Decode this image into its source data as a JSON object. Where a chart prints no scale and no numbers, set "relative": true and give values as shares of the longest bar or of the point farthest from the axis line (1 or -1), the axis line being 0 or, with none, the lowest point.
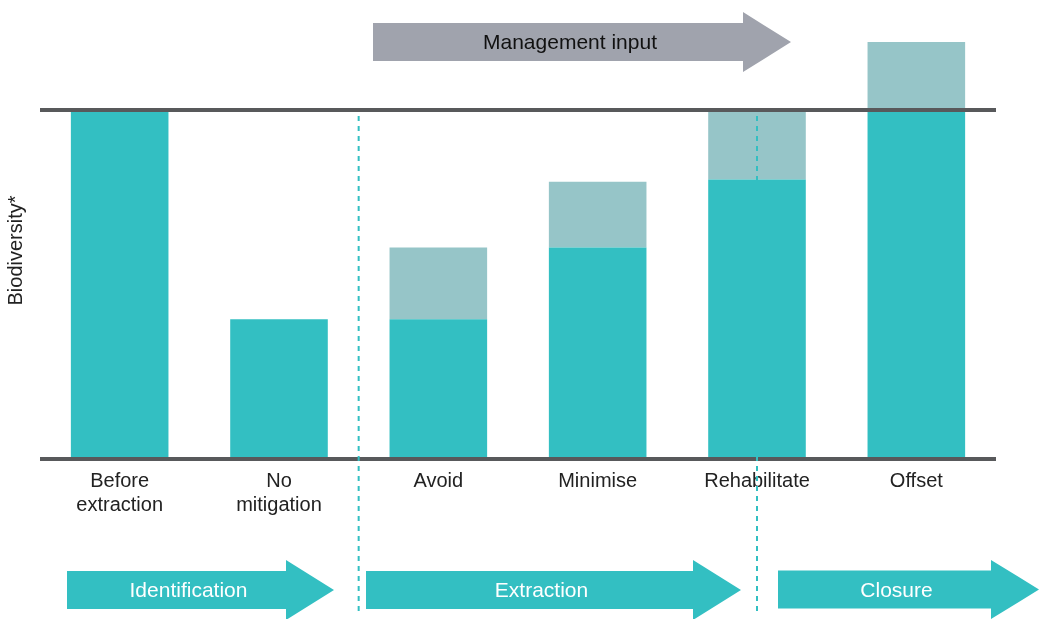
{
  "chart_data": {
    "type": "bar",
    "relative": true,
    "stacked": true,
    "ylabel": "Biodiversity*",
    "categories": [
      "Before extraction",
      "No mitigation",
      "Avoid",
      "Minimise",
      "Rehabilitate",
      "Offset"
    ],
    "series": [
      {
        "color": "#33bfc2",
        "values": [
          0.837,
          0.335,
          0.335,
          0.507,
          0.67,
          0.837
        ]
      },
      {
        "color": "#96c5c8",
        "values": [
          null,
          null,
          0.172,
          0.158,
          0.167,
          0.163
        ]
      }
    ],
    "ref_lines": [
      {
        "axis": "y",
        "value": 0.837,
        "color": "#58595b"
      },
      {
        "axis": "x",
        "value": "Rehabilitate",
        "color": "#33bfc2",
        "line_style": "dashed"
      }
    ],
    "annotations": [
      "Management input",
      "Identification",
      "Extraction",
      "Closure"
    ],
    "legend": false,
    "grid": false
  }
}
